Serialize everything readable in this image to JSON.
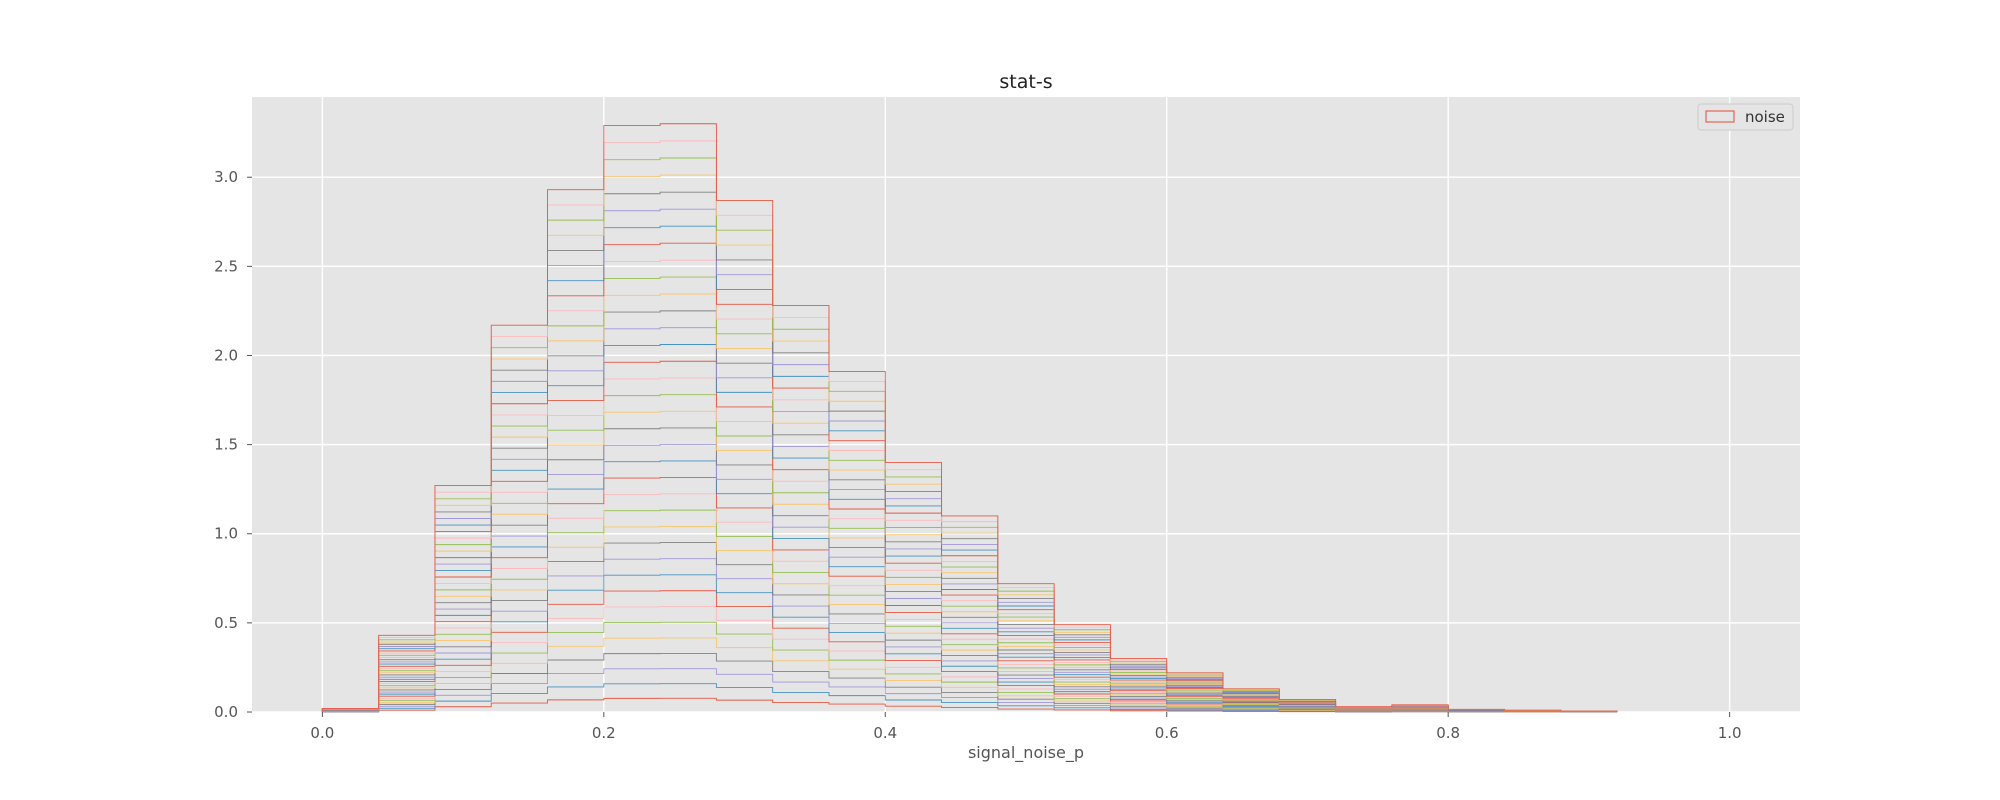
{
  "chart_data": {
    "type": "histogram",
    "title": "stat-s",
    "xlabel": "signal_noise_p",
    "ylabel": "",
    "xlim": [
      -0.05,
      1.05
    ],
    "ylim": [
      0,
      3.45
    ],
    "xticks": [
      0.0,
      0.2,
      0.4,
      0.6,
      0.8,
      1.0
    ],
    "xtick_labels": [
      "0.0",
      "0.2",
      "0.4",
      "0.6",
      "0.8",
      "1.0"
    ],
    "yticks": [
      0.0,
      0.5,
      1.0,
      1.5,
      2.0,
      2.5,
      3.0
    ],
    "ytick_labels": [
      "0.0",
      "0.5",
      "1.0",
      "1.5",
      "2.0",
      "2.5",
      "3.0"
    ],
    "grid": true,
    "legend": {
      "position": "top-right",
      "entries": [
        "noise"
      ]
    },
    "bin_edges": [
      0.0,
      0.04,
      0.08,
      0.12,
      0.16,
      0.2,
      0.24,
      0.28,
      0.32,
      0.36,
      0.4,
      0.44,
      0.48,
      0.52,
      0.56,
      0.6,
      0.64,
      0.68,
      0.72,
      0.76,
      0.8,
      0.84,
      0.88,
      0.92
    ],
    "stack_totals": [
      0.02,
      0.43,
      1.27,
      2.17,
      2.93,
      3.29,
      3.3,
      2.87,
      2.28,
      1.91,
      1.4,
      1.1,
      0.72,
      0.49,
      0.3,
      0.22,
      0.13,
      0.07,
      0.03,
      0.04,
      0.015,
      0.01,
      0.005
    ],
    "layer_count": 36,
    "series_colors": [
      "#E24A33",
      "#348ABD",
      "#988ED5",
      "#777777",
      "#FBC15E",
      "#8EBA42",
      "#FFB5B8"
    ],
    "colors": {
      "plot_bg": "#E5E5E5",
      "grid": "#FFFFFF",
      "legend_border": "#E24A33"
    }
  }
}
